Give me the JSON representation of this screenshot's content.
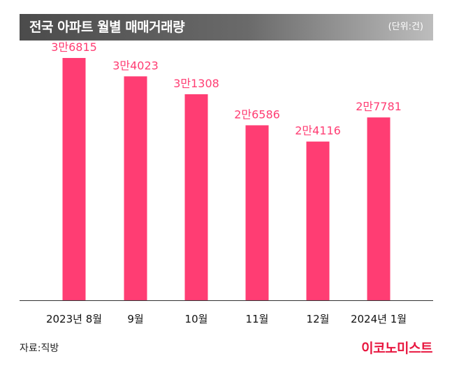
{
  "header": {
    "title": "전국 아파트 월별 매매거래량",
    "unit": "(단위:건)"
  },
  "footer": {
    "source": "자료:직방",
    "logo": "이코노미스트"
  },
  "colors": {
    "bar": "#ff3d73",
    "label": "#ff3d73",
    "axis": "#333333"
  },
  "chart_data": {
    "type": "bar",
    "title": "전국 아파트 월별 매매거래량",
    "unit": "(단위:건)",
    "categories": [
      "2023년 8월",
      "9월",
      "10월",
      "11월",
      "12월",
      "2024년 1월"
    ],
    "values": [
      36815,
      34023,
      31308,
      26586,
      24116,
      27781
    ],
    "data_labels": [
      "3만6815",
      "3만4023",
      "3만1308",
      "2만6586",
      "2만4116",
      "2만7781"
    ],
    "ylim": [
      0,
      40000
    ],
    "grid": false,
    "legend": "none"
  }
}
